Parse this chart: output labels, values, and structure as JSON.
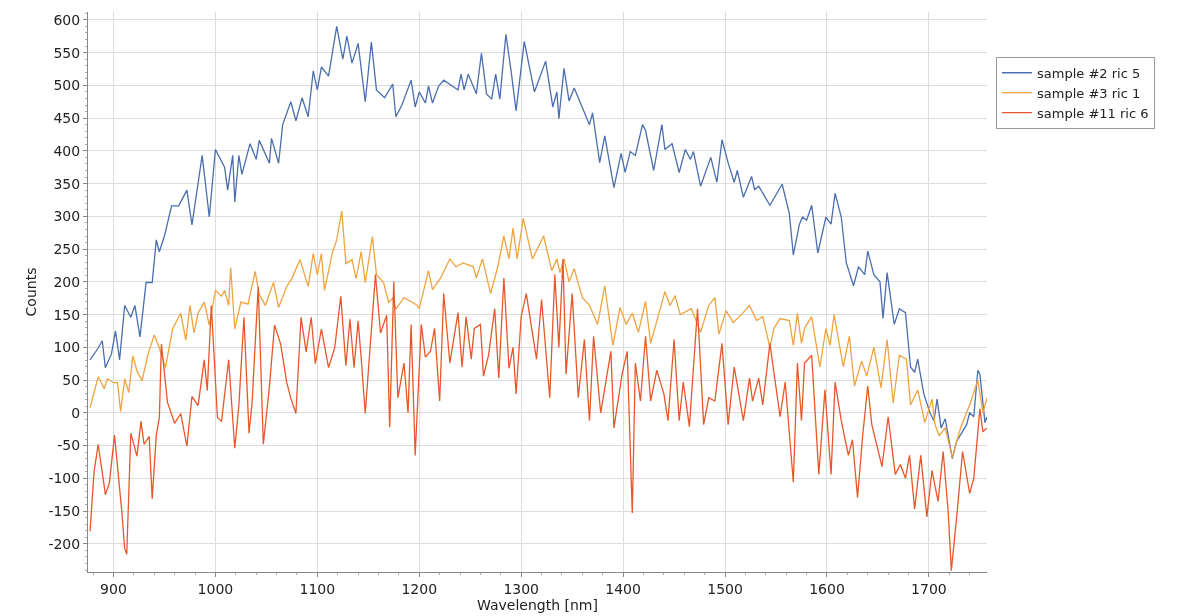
{
  "chart_data": {
    "type": "line",
    "xlabel": "Wavelength [nm]",
    "ylabel": "Counts",
    "xlim": [
      875,
      1757
    ],
    "ylim": [
      -243,
      612
    ],
    "xticks": [
      900,
      1000,
      1100,
      1200,
      1300,
      1400,
      1500,
      1600,
      1700
    ],
    "yticks": [
      -200,
      -150,
      -100,
      -50,
      0,
      50,
      100,
      150,
      200,
      250,
      300,
      350,
      400,
      450,
      500,
      550,
      600
    ],
    "grid": true,
    "legend": "top right",
    "marker": "none",
    "line_style": "solid",
    "series": [
      {
        "name": "sample #2 ric 5",
        "color": "#4a6fae",
        "x": [
          877,
          885,
          889,
          892,
          898,
          902,
          906,
          911,
          917,
          921,
          926,
          932,
          938,
          942,
          945,
          950,
          957,
          964,
          972,
          977,
          987,
          994,
          1000,
          1009,
          1012,
          1017,
          1019,
          1023,
          1026,
          1034,
          1040,
          1043,
          1053,
          1055,
          1062,
          1066,
          1074,
          1079,
          1085,
          1091,
          1096,
          1100,
          1104,
          1111,
          1119,
          1125,
          1129,
          1134,
          1140,
          1147,
          1153,
          1158,
          1166,
          1174,
          1177,
          1183,
          1192,
          1196,
          1200,
          1206,
          1209,
          1213,
          1219,
          1224,
          1238,
          1241,
          1244,
          1248,
          1256,
          1261,
          1266,
          1271,
          1275,
          1279,
          1285,
          1290,
          1295,
          1303,
          1313,
          1324,
          1331,
          1335,
          1337,
          1342,
          1347,
          1352,
          1367,
          1370,
          1377,
          1382,
          1391,
          1398,
          1402,
          1407,
          1412,
          1419,
          1422,
          1430,
          1438,
          1441,
          1448,
          1455,
          1461,
          1466,
          1469,
          1476,
          1486,
          1492,
          1497,
          1503,
          1509,
          1512,
          1518,
          1526,
          1529,
          1533,
          1544,
          1556,
          1563,
          1567,
          1573,
          1576,
          1580,
          1585,
          1591,
          1599,
          1604,
          1608,
          1614,
          1619,
          1626,
          1631,
          1637,
          1640,
          1646,
          1652,
          1655,
          1659,
          1666,
          1671,
          1677,
          1682,
          1686,
          1689,
          1695,
          1701,
          1705,
          1708,
          1712,
          1716,
          1723,
          1727,
          1737,
          1740,
          1744,
          1748,
          1750,
          1755,
          1757
        ],
        "values": [
          81,
          99,
          110,
          69,
          90,
          125,
          81,
          164,
          146,
          164,
          116,
          199,
          199,
          264,
          246,
          270,
          316,
          316,
          340,
          287,
          393,
          299,
          402,
          375,
          340,
          393,
          322,
          393,
          364,
          411,
          387,
          416,
          381,
          419,
          381,
          440,
          475,
          446,
          481,
          452,
          522,
          493,
          528,
          514,
          590,
          540,
          575,
          534,
          564,
          475,
          566,
          493,
          481,
          502,
          452,
          470,
          508,
          467,
          490,
          473,
          499,
          473,
          499,
          508,
          493,
          517,
          493,
          517,
          487,
          549,
          487,
          479,
          517,
          479,
          578,
          523,
          461,
          567,
          490,
          537,
          467,
          490,
          449,
          526,
          476,
          496,
          440,
          458,
          382,
          423,
          344,
          396,
          367,
          399,
          393,
          440,
          431,
          370,
          440,
          402,
          411,
          367,
          402,
          387,
          399,
          346,
          390,
          352,
          417,
          382,
          352,
          370,
          329,
          361,
          341,
          346,
          317,
          349,
          305,
          241,
          288,
          299,
          294,
          317,
          244,
          299,
          288,
          335,
          299,
          229,
          194,
          223,
          211,
          247,
          211,
          200,
          144,
          214,
          135,
          159,
          153,
          70,
          62,
          82,
          29,
          0,
          -12,
          21,
          -23,
          -9,
          -70,
          -44,
          -18,
          0,
          -6,
          65,
          59,
          -15,
          -6
        ]
      },
      {
        "name": "sample #3 ric 1",
        "color": "#f0a340",
        "x": [
          877,
          885,
          891,
          894,
          900,
          904,
          907,
          911,
          915,
          919,
          923,
          928,
          934,
          940,
          945,
          951,
          958,
          966,
          971,
          975,
          979,
          983,
          989,
          994,
          1000,
          1006,
          1009,
          1013,
          1015,
          1019,
          1025,
          1032,
          1039,
          1043,
          1049,
          1057,
          1062,
          1070,
          1075,
          1083,
          1091,
          1096,
          1100,
          1104,
          1107,
          1115,
          1119,
          1124,
          1128,
          1134,
          1138,
          1143,
          1147,
          1154,
          1158,
          1165,
          1170,
          1174,
          1177,
          1185,
          1192,
          1198,
          1200,
          1209,
          1213,
          1221,
          1230,
          1236,
          1243,
          1253,
          1256,
          1262,
          1270,
          1277,
          1283,
          1288,
          1292,
          1296,
          1302,
          1311,
          1322,
          1330,
          1335,
          1338,
          1342,
          1347,
          1352,
          1360,
          1367,
          1375,
          1382,
          1390,
          1397,
          1403,
          1409,
          1415,
          1422,
          1427,
          1441,
          1446,
          1451,
          1456,
          1467,
          1476,
          1484,
          1490,
          1494,
          1501,
          1508,
          1516,
          1524,
          1531,
          1537,
          1544,
          1548,
          1554,
          1563,
          1567,
          1571,
          1575,
          1578,
          1585,
          1593,
          1599,
          1603,
          1607,
          1616,
          1622,
          1627,
          1634,
          1639,
          1646,
          1653,
          1659,
          1665,
          1671,
          1678,
          1682,
          1689,
          1696,
          1703,
          1706,
          1710,
          1716,
          1723,
          1731,
          1740,
          1748,
          1753,
          1757
        ],
        "values": [
          8,
          55,
          37,
          52,
          46,
          46,
          2,
          52,
          31,
          87,
          64,
          49,
          90,
          119,
          99,
          69,
          128,
          152,
          111,
          164,
          122,
          152,
          169,
          134,
          187,
          178,
          187,
          164,
          222,
          128,
          169,
          166,
          216,
          181,
          164,
          199,
          161,
          193,
          205,
          234,
          193,
          243,
          211,
          243,
          187,
          246,
          264,
          308,
          228,
          234,
          205,
          246,
          199,
          269,
          211,
          199,
          169,
          175,
          158,
          176,
          170,
          164,
          159,
          217,
          188,
          206,
          235,
          223,
          229,
          223,
          206,
          235,
          182,
          223,
          270,
          235,
          282,
          235,
          297,
          235,
          270,
          217,
          235,
          214,
          235,
          200,
          220,
          176,
          164,
          135,
          194,
          103,
          161,
          135,
          152,
          123,
          170,
          106,
          185,
          164,
          179,
          150,
          159,
          123,
          164,
          176,
          120,
          156,
          138,
          150,
          164,
          141,
          147,
          100,
          129,
          144,
          141,
          103,
          152,
          106,
          129,
          147,
          70,
          129,
          103,
          150,
          70,
          117,
          41,
          79,
          56,
          100,
          38,
          112,
          15,
          88,
          82,
          12,
          35,
          -15,
          21,
          -18,
          -35,
          -23,
          -68,
          -23,
          12,
          50,
          0,
          23
        ]
      },
      {
        "name": "sample #11 ric 6",
        "color": "#e8572a",
        "x": [
          877,
          881,
          885,
          891,
          892,
          896,
          901,
          908,
          911,
          913,
          917,
          923,
          927,
          930,
          935,
          938,
          942,
          945,
          947,
          953,
          960,
          966,
          972,
          977,
          983,
          989,
          992,
          996,
          1002,
          1006,
          1013,
          1019,
          1023,
          1028,
          1033,
          1036,
          1042,
          1047,
          1053,
          1058,
          1064,
          1070,
          1074,
          1079,
          1084,
          1089,
          1094,
          1098,
          1104,
          1111,
          1117,
          1123,
          1128,
          1132,
          1136,
          1140,
          1143,
          1147,
          1157,
          1162,
          1168,
          1171,
          1175,
          1179,
          1185,
          1189,
          1192,
          1196,
          1202,
          1206,
          1211,
          1215,
          1220,
          1224,
          1230,
          1238,
          1242,
          1246,
          1251,
          1254,
          1260,
          1263,
          1268,
          1274,
          1278,
          1283,
          1288,
          1292,
          1295,
          1300,
          1305,
          1315,
          1320,
          1328,
          1333,
          1337,
          1341,
          1344,
          1350,
          1356,
          1362,
          1367,
          1371,
          1378,
          1388,
          1391,
          1399,
          1404,
          1409,
          1412,
          1417,
          1422,
          1427,
          1433,
          1440,
          1444,
          1450,
          1455,
          1459,
          1465,
          1473,
          1479,
          1484,
          1490,
          1497,
          1503,
          1509,
          1518,
          1524,
          1527,
          1533,
          1537,
          1544,
          1554,
          1559,
          1567,
          1571,
          1575,
          1578,
          1585,
          1592,
          1598,
          1604,
          1608,
          1614,
          1621,
          1625,
          1630,
          1635,
          1640,
          1644,
          1654,
          1660,
          1667,
          1672,
          1677,
          1681,
          1686,
          1692,
          1698,
          1703,
          1709,
          1714,
          1719,
          1722,
          1728,
          1733,
          1740,
          1744,
          1750,
          1753,
          1757
        ],
        "values": [
          -181,
          -89,
          -48,
          -113,
          -125,
          -107,
          -34,
          -148,
          -207,
          -216,
          -31,
          -66,
          -13,
          -48,
          -36,
          -131,
          -34,
          -7,
          105,
          16,
          -16,
          -1,
          -51,
          25,
          11,
          81,
          34,
          164,
          -7,
          -13,
          81,
          -54,
          11,
          146,
          -31,
          16,
          193,
          -48,
          40,
          134,
          105,
          46,
          22,
          -1,
          146,
          93,
          146,
          75,
          128,
          69,
          99,
          178,
          72,
          143,
          69,
          140,
          84,
          -1,
          211,
          122,
          149,
          -22,
          200,
          23,
          76,
          0,
          135,
          -65,
          135,
          85,
          94,
          129,
          18,
          182,
          76,
          153,
          70,
          147,
          82,
          129,
          135,
          56,
          88,
          159,
          53,
          206,
          68,
          100,
          29,
          147,
          182,
          82,
          173,
          23,
          211,
          100,
          235,
          59,
          182,
          23,
          112,
          -12,
          117,
          0,
          94,
          -23,
          59,
          94,
          -153,
          76,
          18,
          117,
          18,
          65,
          29,
          -12,
          112,
          -12,
          47,
          -21,
          159,
          -18,
          23,
          18,
          106,
          -18,
          70,
          -12,
          53,
          18,
          53,
          12,
          106,
          -6,
          47,
          -106,
          76,
          -12,
          76,
          88,
          -94,
          35,
          -94,
          47,
          -12,
          -65,
          -41,
          -129,
          -35,
          41,
          -18,
          -82,
          -6,
          -94,
          -79,
          -100,
          -65,
          -147,
          -65,
          -159,
          -88,
          -135,
          -59,
          -153,
          -241,
          -147,
          -59,
          -123,
          -100,
          6,
          -29,
          -23
        ]
      }
    ]
  }
}
